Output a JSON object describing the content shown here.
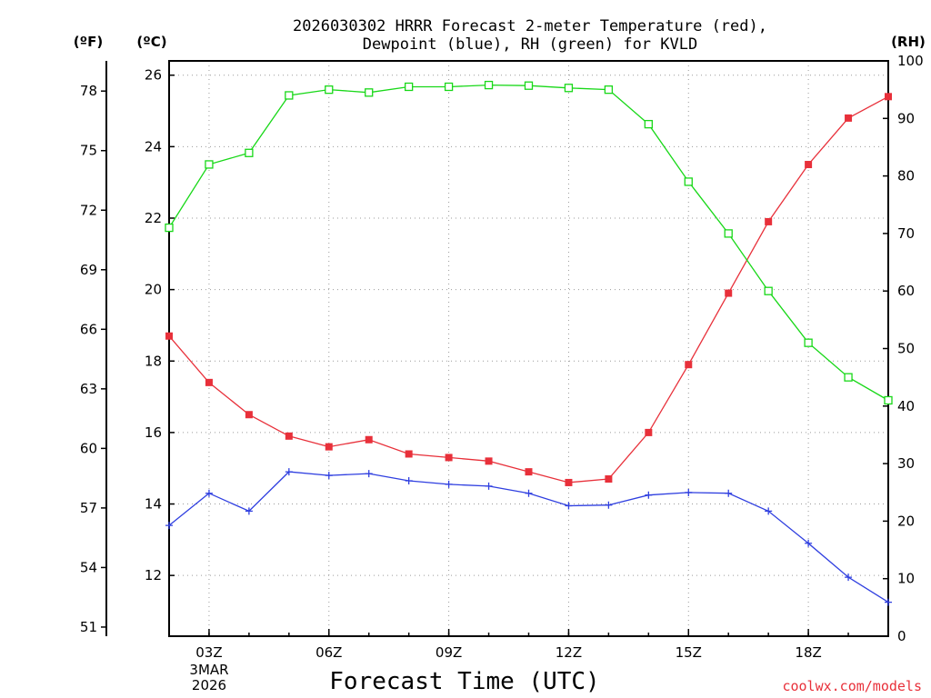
{
  "chart_data": {
    "type": "line",
    "title_line1": "2026030302 HRRR Forecast 2-meter Temperature (red),",
    "title_line2": "Dewpoint (blue), RH (green) for KVLD",
    "xlabel": "Forecast Time (UTC)",
    "credit": "coolwx.com/models",
    "left_unit_f": "(ºF)",
    "left_unit_c": "(ºC)",
    "right_unit": "(RH)",
    "date_label_1": "3MAR",
    "date_label_2": "2026",
    "x": [
      2,
      3,
      4,
      5,
      6,
      7,
      8,
      9,
      10,
      11,
      12,
      13,
      14,
      15,
      16,
      17,
      18,
      19,
      20
    ],
    "xlim": [
      2,
      20
    ],
    "x_ticks": [
      {
        "x": 3,
        "label": "03Z"
      },
      {
        "x": 6,
        "label": "06Z"
      },
      {
        "x": 9,
        "label": "09Z"
      },
      {
        "x": 12,
        "label": "12Z"
      },
      {
        "x": 15,
        "label": "15Z"
      },
      {
        "x": 18,
        "label": "18Z"
      }
    ],
    "ylim_c": [
      10.3,
      26.4
    ],
    "yticks_c": [
      12,
      14,
      16,
      18,
      20,
      22,
      24,
      26
    ],
    "yticks_f": [
      51,
      54,
      57,
      60,
      63,
      66,
      69,
      72,
      75,
      78
    ],
    "ylim_rh": [
      0,
      100
    ],
    "yticks_rh": [
      0,
      10,
      20,
      30,
      40,
      50,
      60,
      70,
      80,
      90,
      100
    ],
    "colors": {
      "temperature": "#e8303a",
      "dewpoint": "#2f3fe0",
      "rh": "#18d818"
    },
    "series": [
      {
        "name": "Temperature",
        "axis": "c",
        "marker": "square",
        "values": [
          18.7,
          17.4,
          16.5,
          15.9,
          15.6,
          15.8,
          15.4,
          15.3,
          15.2,
          14.9,
          14.6,
          14.7,
          16.0,
          17.9,
          19.9,
          21.9,
          23.5,
          24.8,
          25.4
        ]
      },
      {
        "name": "Dewpoint",
        "axis": "c",
        "marker": "plus",
        "values": [
          13.4,
          14.3,
          13.8,
          14.9,
          14.8,
          14.85,
          14.65,
          14.55,
          14.5,
          14.3,
          13.95,
          13.97,
          14.25,
          14.32,
          14.3,
          13.8,
          12.9,
          11.95,
          11.25
        ]
      },
      {
        "name": "RH",
        "axis": "rh",
        "marker": "open-square",
        "values": [
          71,
          82,
          84,
          94,
          95,
          94.5,
          95.5,
          95.5,
          95.8,
          95.7,
          95.3,
          95,
          89,
          79,
          70,
          60,
          51,
          45,
          41
        ]
      }
    ]
  }
}
